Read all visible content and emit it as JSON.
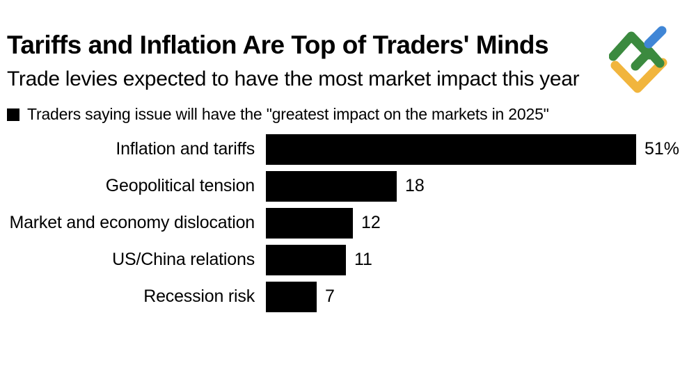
{
  "chart_data": {
    "type": "bar",
    "orientation": "horizontal",
    "title": "Tariffs and Inflation Are Top of Traders' Minds",
    "subtitle": "Trade levies expected to have the most market impact this year",
    "legend_label": "Traders saying issue will have the \"greatest impact on the markets in 2025\"",
    "categories": [
      "Inflation and tariffs",
      "Geopolitical tension",
      "Market and economy dislocation",
      "US/China relations",
      "Recession risk"
    ],
    "values": [
      51,
      18,
      12,
      11,
      7
    ],
    "value_labels": [
      "51%",
      "18",
      "12",
      "11",
      "7"
    ],
    "xlim": [
      0,
      51
    ],
    "bar_color": "#000000",
    "legend_swatch_color": "#000000",
    "grid": false,
    "legend_position": "top-left"
  },
  "logo": {
    "name": "brand-logo",
    "colors": {
      "green": "#3b8a3f",
      "blue": "#4086d6",
      "yellow": "#f1b53d"
    }
  }
}
